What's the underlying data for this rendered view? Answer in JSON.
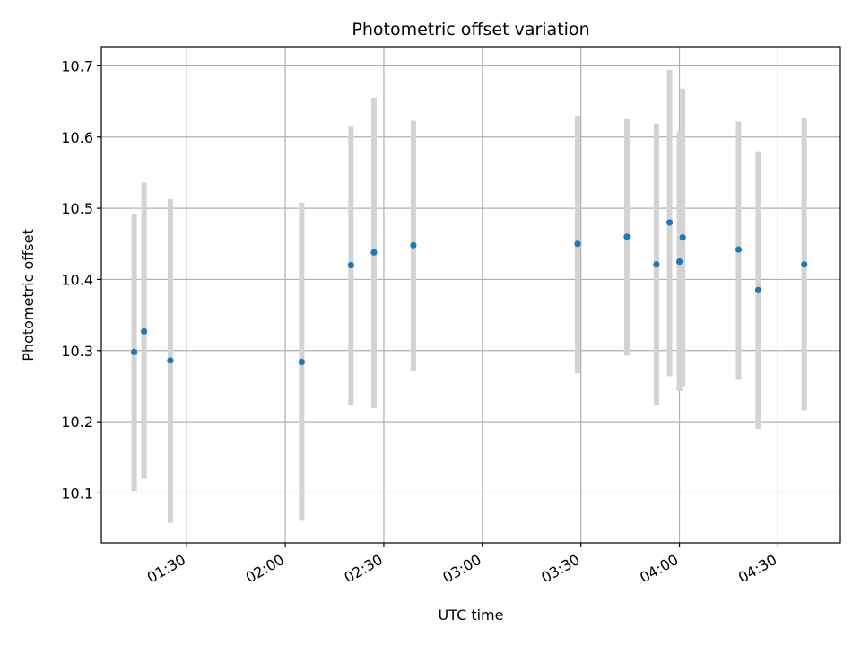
{
  "chart_data": {
    "type": "scatter",
    "title": "Photometric offset variation",
    "xlabel": "UTC time",
    "ylabel": "Photometric offset",
    "x_ticks": [
      "01:30",
      "02:00",
      "02:30",
      "03:00",
      "03:30",
      "04:00",
      "04:30"
    ],
    "y_ticks": [
      "10.1",
      "10.2",
      "10.3",
      "10.4",
      "10.5",
      "10.6",
      "10.7"
    ],
    "xlim": [
      "01:04",
      "04:49"
    ],
    "ylim": [
      10.03,
      10.727
    ],
    "grid": true,
    "colors": {
      "marker": "#1f77b4",
      "errorbar": "#d3d3d3",
      "grid": "#b0b0b0"
    },
    "points": [
      {
        "x": "01:14",
        "y": 10.298,
        "ylow": 10.103,
        "yhigh": 10.492
      },
      {
        "x": "01:17",
        "y": 10.327,
        "ylow": 10.12,
        "yhigh": 10.536
      },
      {
        "x": "01:25",
        "y": 10.286,
        "ylow": 10.058,
        "yhigh": 10.513
      },
      {
        "x": "02:05",
        "y": 10.284,
        "ylow": 10.061,
        "yhigh": 10.508
      },
      {
        "x": "02:20",
        "y": 10.42,
        "ylow": 10.224,
        "yhigh": 10.616
      },
      {
        "x": "02:27",
        "y": 10.438,
        "ylow": 10.219,
        "yhigh": 10.655
      },
      {
        "x": "02:39",
        "y": 10.448,
        "ylow": 10.271,
        "yhigh": 10.623
      },
      {
        "x": "03:29",
        "y": 10.45,
        "ylow": 10.268,
        "yhigh": 10.63
      },
      {
        "x": "03:44",
        "y": 10.46,
        "ylow": 10.293,
        "yhigh": 10.625
      },
      {
        "x": "03:53",
        "y": 10.421,
        "ylow": 10.224,
        "yhigh": 10.619
      },
      {
        "x": "03:57",
        "y": 10.48,
        "ylow": 10.264,
        "yhigh": 10.694
      },
      {
        "x": "04:00",
        "y": 10.425,
        "ylow": 10.243,
        "yhigh": 10.608
      },
      {
        "x": "04:01",
        "y": 10.459,
        "ylow": 10.25,
        "yhigh": 10.668
      },
      {
        "x": "04:18",
        "y": 10.442,
        "ylow": 10.26,
        "yhigh": 10.622
      },
      {
        "x": "04:24",
        "y": 10.385,
        "ylow": 10.19,
        "yhigh": 10.58
      },
      {
        "x": "04:38",
        "y": 10.421,
        "ylow": 10.216,
        "yhigh": 10.627
      }
    ]
  }
}
